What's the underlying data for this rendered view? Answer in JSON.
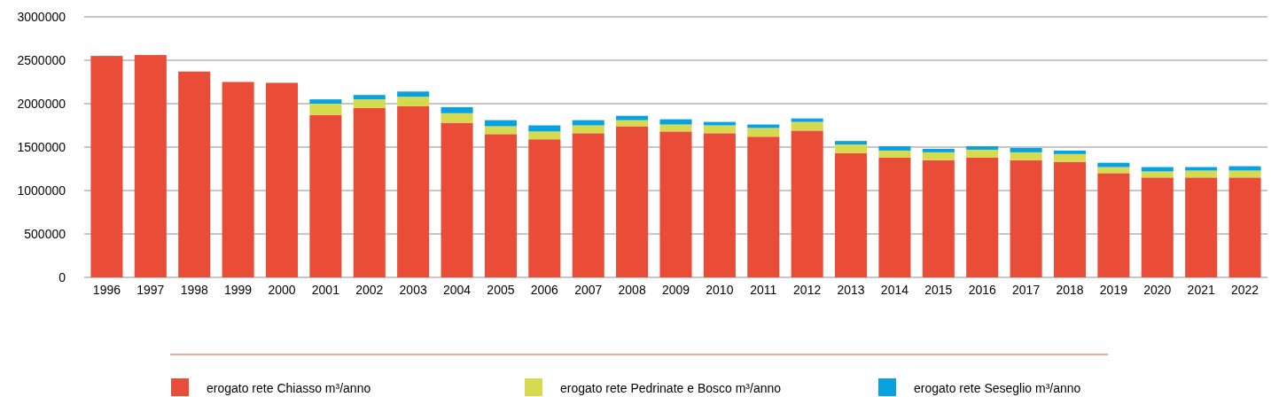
{
  "chart_data": {
    "type": "bar",
    "stacked": true,
    "categories": [
      "1996",
      "1997",
      "1998",
      "1999",
      "2000",
      "2001",
      "2002",
      "2003",
      "2004",
      "2005",
      "2006",
      "2007",
      "2008",
      "2009",
      "2010",
      "2011",
      "2012",
      "2013",
      "2014",
      "2015",
      "2016",
      "2017",
      "2018",
      "2019",
      "2020",
      "2021",
      "2022"
    ],
    "series": [
      {
        "name": "erogato rete Chiasso m³/anno",
        "color": "#e94c37",
        "values": [
          2550000,
          2560000,
          2370000,
          2250000,
          2240000,
          1870000,
          1950000,
          1970000,
          1780000,
          1650000,
          1590000,
          1660000,
          1740000,
          1680000,
          1660000,
          1620000,
          1690000,
          1430000,
          1380000,
          1350000,
          1380000,
          1350000,
          1330000,
          1200000,
          1150000,
          1150000,
          1150000
        ]
      },
      {
        "name": "erogato rete Pedrinate e Bosco m³/anno",
        "color": "#d6da4e",
        "values": [
          null,
          null,
          null,
          null,
          null,
          130000,
          100000,
          110000,
          110000,
          90000,
          90000,
          90000,
          70000,
          80000,
          90000,
          100000,
          100000,
          100000,
          80000,
          90000,
          90000,
          90000,
          90000,
          70000,
          70000,
          80000,
          80000
        ]
      },
      {
        "name": "erogato rete Seseglio m³/anno",
        "color": "#09a2e1",
        "values": [
          null,
          null,
          null,
          null,
          null,
          50000,
          50000,
          60000,
          70000,
          70000,
          70000,
          60000,
          50000,
          60000,
          40000,
          40000,
          40000,
          40000,
          50000,
          40000,
          40000,
          50000,
          40000,
          50000,
          50000,
          40000,
          50000
        ]
      }
    ],
    "ylim": [
      0,
      3000000
    ],
    "yticks": [
      0,
      500000,
      1000000,
      1500000,
      2000000,
      2500000,
      3000000
    ],
    "grid": "y",
    "legend": "bottom"
  }
}
